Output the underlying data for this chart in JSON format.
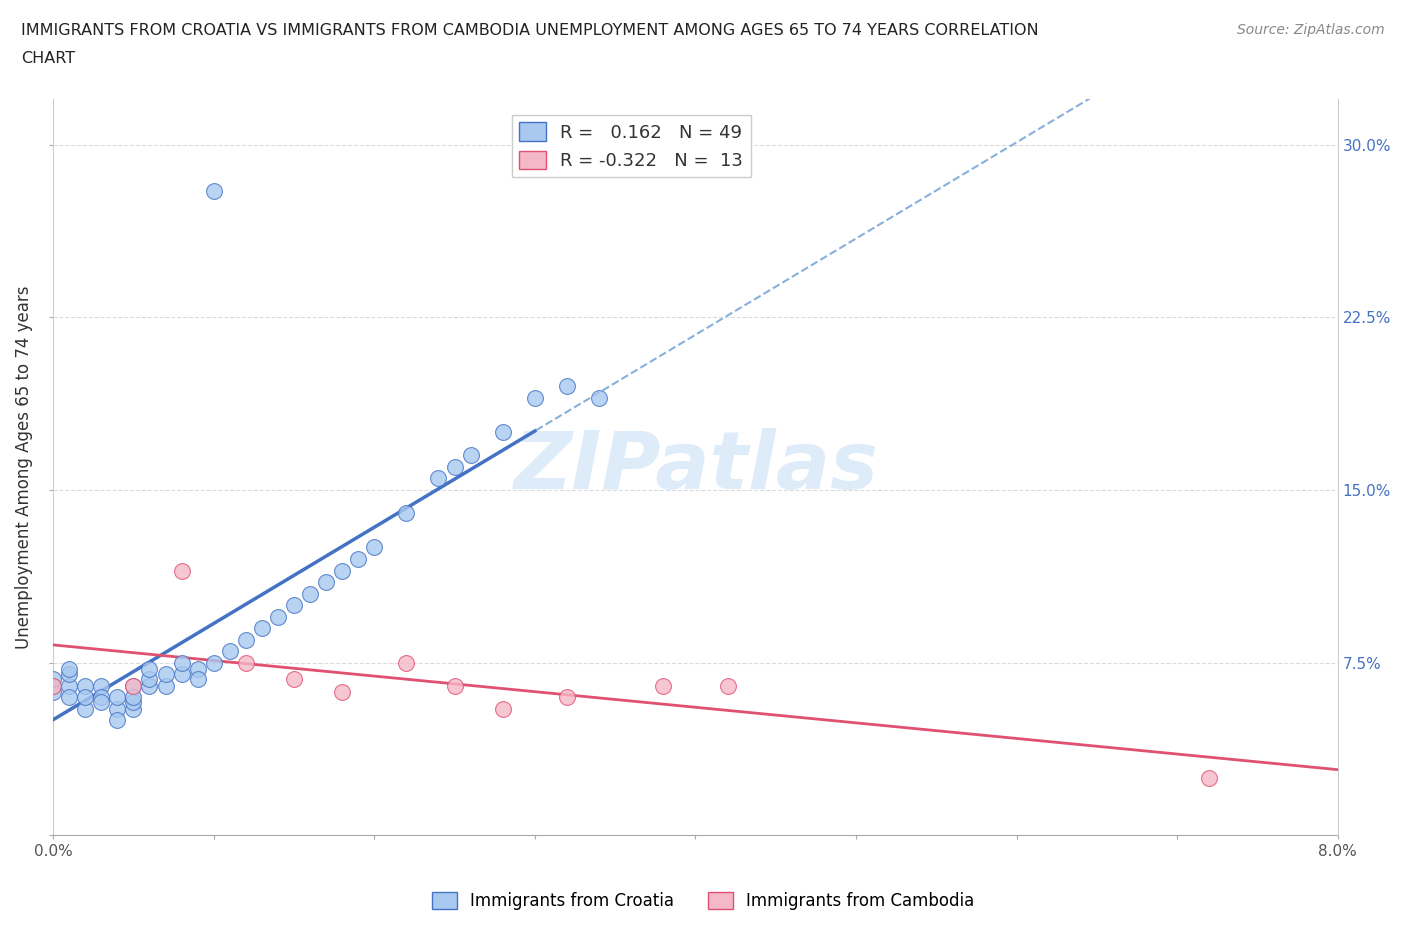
{
  "title_line1": "IMMIGRANTS FROM CROATIA VS IMMIGRANTS FROM CAMBODIA UNEMPLOYMENT AMONG AGES 65 TO 74 YEARS CORRELATION",
  "title_line2": "CHART",
  "source": "Source: ZipAtlas.com",
  "ylabel": "Unemployment Among Ages 65 to 74 years",
  "xlim": [
    0.0,
    0.08
  ],
  "ylim": [
    0.0,
    0.32
  ],
  "xticks": [
    0.0,
    0.01,
    0.02,
    0.03,
    0.04,
    0.05,
    0.06,
    0.07,
    0.08
  ],
  "xticklabels": [
    "0.0%",
    "",
    "",
    "",
    "",
    "",
    "",
    "",
    "8.0%"
  ],
  "yticks": [
    0.0,
    0.075,
    0.15,
    0.225,
    0.3
  ],
  "grid_color": "#cccccc",
  "background_color": "#ffffff",
  "watermark_text": "ZIPatlas",
  "croatia_fill": "#a8c8f0",
  "cambodia_fill": "#f4b8c8",
  "croatia_edge": "#4472C4",
  "cambodia_edge": "#E05070",
  "croatia_line_color": "#4472C4",
  "cambodia_line_color": "#E05070",
  "dashed_line_color": "#7aa8d8",
  "R_croatia": 0.162,
  "N_croatia": 49,
  "R_cambodia": -0.322,
  "N_cambodia": 13,
  "croatia_x": [
    0.0,
    0.0,
    0.0,
    0.001,
    0.001,
    0.001,
    0.001,
    0.002,
    0.002,
    0.002,
    0.003,
    0.003,
    0.003,
    0.004,
    0.004,
    0.004,
    0.005,
    0.005,
    0.005,
    0.005,
    0.006,
    0.006,
    0.006,
    0.007,
    0.007,
    0.008,
    0.008,
    0.009,
    0.009,
    0.01,
    0.011,
    0.012,
    0.013,
    0.014,
    0.015,
    0.016,
    0.017,
    0.018,
    0.019,
    0.02,
    0.022,
    0.024,
    0.025,
    0.026,
    0.028,
    0.03,
    0.032,
    0.034,
    0.01
  ],
  "croatia_y": [
    0.065,
    0.062,
    0.068,
    0.065,
    0.06,
    0.07,
    0.072,
    0.065,
    0.055,
    0.06,
    0.065,
    0.06,
    0.058,
    0.055,
    0.05,
    0.06,
    0.065,
    0.055,
    0.058,
    0.06,
    0.065,
    0.068,
    0.072,
    0.065,
    0.07,
    0.07,
    0.075,
    0.072,
    0.068,
    0.075,
    0.08,
    0.085,
    0.09,
    0.095,
    0.1,
    0.105,
    0.11,
    0.115,
    0.12,
    0.125,
    0.14,
    0.155,
    0.16,
    0.165,
    0.175,
    0.19,
    0.195,
    0.19,
    0.28
  ],
  "cambodia_x": [
    0.0,
    0.005,
    0.008,
    0.012,
    0.015,
    0.018,
    0.022,
    0.025,
    0.028,
    0.032,
    0.038,
    0.042,
    0.072
  ],
  "cambodia_y": [
    0.065,
    0.065,
    0.115,
    0.075,
    0.068,
    0.062,
    0.075,
    0.065,
    0.055,
    0.06,
    0.065,
    0.065,
    0.025
  ],
  "legend_label_croatia": "Immigrants from Croatia",
  "legend_label_cambodia": "Immigrants from Cambodia"
}
